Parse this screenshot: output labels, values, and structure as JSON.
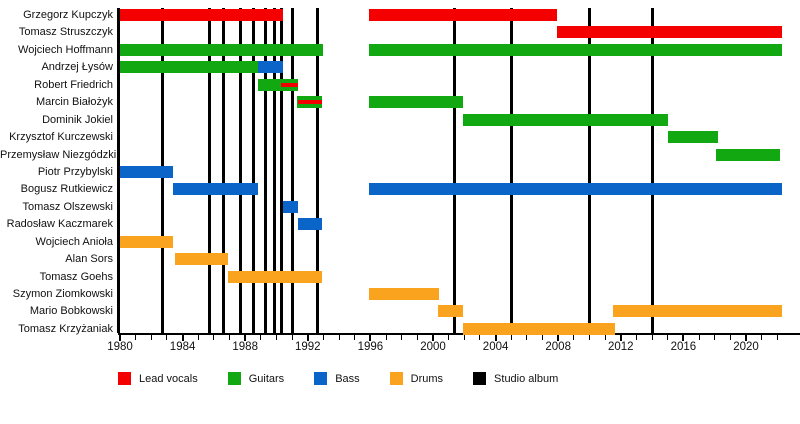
{
  "chart_data": {
    "type": "timeline",
    "description": "Band members timeline (Gantt-style) with studio album release lines",
    "x_axis": {
      "start": 1980,
      "end": 2022.3,
      "major_tick_step": 4,
      "minor_tick_step": 1,
      "tick_labels": [
        "1980",
        "1984",
        "1988",
        "1992",
        "1996",
        "2000",
        "2004",
        "2008",
        "2012",
        "2016",
        "2020"
      ]
    },
    "colors": {
      "lead_vocals": "#F40000",
      "guitars": "#12A812",
      "bass": "#0B64C8",
      "drums": "#F9A31F",
      "studio_album": "#000000"
    },
    "members": [
      {
        "name": "Grzegorz Kupczyk",
        "segments": [
          {
            "role": "lead_vocals",
            "start": 1980.0,
            "end": 1990.4
          },
          {
            "role": "lead_vocals",
            "start": 1995.9,
            "end": 2007.9
          }
        ]
      },
      {
        "name": "Tomasz Struszczyk",
        "segments": [
          {
            "role": "lead_vocals",
            "start": 2007.9,
            "end": 2022.3
          }
        ]
      },
      {
        "name": "Wojciech Hoffmann",
        "segments": [
          {
            "role": "guitars",
            "start": 1980.0,
            "end": 1993.0
          },
          {
            "role": "guitars",
            "start": 1995.9,
            "end": 2022.3
          }
        ]
      },
      {
        "name": "Andrzej Łysów",
        "segments": [
          {
            "role": "guitars",
            "start": 1980.0,
            "end": 1988.8
          },
          {
            "role": "bass",
            "start": 1988.8,
            "end": 1990.4
          }
        ]
      },
      {
        "name": "Robert Friedrich",
        "segments": [
          {
            "role": "guitars",
            "start": 1988.8,
            "end": 1991.4,
            "overlay": {
              "role": "lead_vocals",
              "start": 1990.3,
              "end": 1991.4
            }
          }
        ]
      },
      {
        "name": "Marcin Białożyk",
        "segments": [
          {
            "role": "guitars",
            "start": 1991.3,
            "end": 1992.9,
            "overlay": {
              "role": "lead_vocals",
              "start": 1991.4,
              "end": 1992.9
            }
          },
          {
            "role": "guitars",
            "start": 1995.9,
            "end": 2001.9
          }
        ]
      },
      {
        "name": "Dominik Jokiel",
        "segments": [
          {
            "role": "guitars",
            "start": 2001.9,
            "end": 2015.0
          }
        ]
      },
      {
        "name": "Krzysztof Kurczewski",
        "segments": [
          {
            "role": "guitars",
            "start": 2015.0,
            "end": 2018.2
          }
        ]
      },
      {
        "name": "Przemysław Niezgódzki",
        "segments": [
          {
            "role": "guitars",
            "start": 2018.1,
            "end": 2022.2
          }
        ]
      },
      {
        "name": "Piotr Przybylski",
        "segments": [
          {
            "role": "bass",
            "start": 1980.0,
            "end": 1983.4
          }
        ]
      },
      {
        "name": "Bogusz Rutkiewicz",
        "segments": [
          {
            "role": "bass",
            "start": 1983.4,
            "end": 1988.8
          },
          {
            "role": "bass",
            "start": 1995.9,
            "end": 2022.3
          }
        ]
      },
      {
        "name": "Tomasz Olszewski",
        "segments": [
          {
            "role": "bass",
            "start": 1990.4,
            "end": 1991.4
          }
        ]
      },
      {
        "name": "Radosław Kaczmarek",
        "segments": [
          {
            "role": "bass",
            "start": 1991.4,
            "end": 1992.9
          }
        ]
      },
      {
        "name": "Wojciech Anioła",
        "segments": [
          {
            "role": "drums",
            "start": 1980.0,
            "end": 1983.4
          }
        ]
      },
      {
        "name": "Alan Sors",
        "segments": [
          {
            "role": "drums",
            "start": 1983.5,
            "end": 1986.9
          }
        ]
      },
      {
        "name": "Tomasz Goehs",
        "segments": [
          {
            "role": "drums",
            "start": 1986.9,
            "end": 1992.9
          }
        ]
      },
      {
        "name": "Szymon Ziomkowski",
        "segments": [
          {
            "role": "drums",
            "start": 1995.9,
            "end": 2000.4
          }
        ]
      },
      {
        "name": "Mario Bobkowski",
        "segments": [
          {
            "role": "drums",
            "start": 2000.3,
            "end": 2001.9
          },
          {
            "role": "drums",
            "start": 2011.5,
            "end": 2022.3
          }
        ]
      },
      {
        "name": "Tomasz Krzyżaniak",
        "segments": [
          {
            "role": "drums",
            "start": 2001.9,
            "end": 2011.6
          }
        ]
      }
    ],
    "album_lines_years": [
      1982.7,
      1985.7,
      1986.6,
      1987.7,
      1988.5,
      1989.3,
      1989.9,
      1990.3,
      1991.0,
      1992.6,
      2001.4,
      2005.0,
      2010.0,
      2014.0
    ],
    "legend": [
      {
        "label": "Lead vocals",
        "role": "lead_vocals"
      },
      {
        "label": "Guitars",
        "role": "guitars"
      },
      {
        "label": "Bass",
        "role": "bass"
      },
      {
        "label": "Drums",
        "role": "drums"
      },
      {
        "label": "Studio album",
        "role": "studio_album"
      }
    ]
  }
}
